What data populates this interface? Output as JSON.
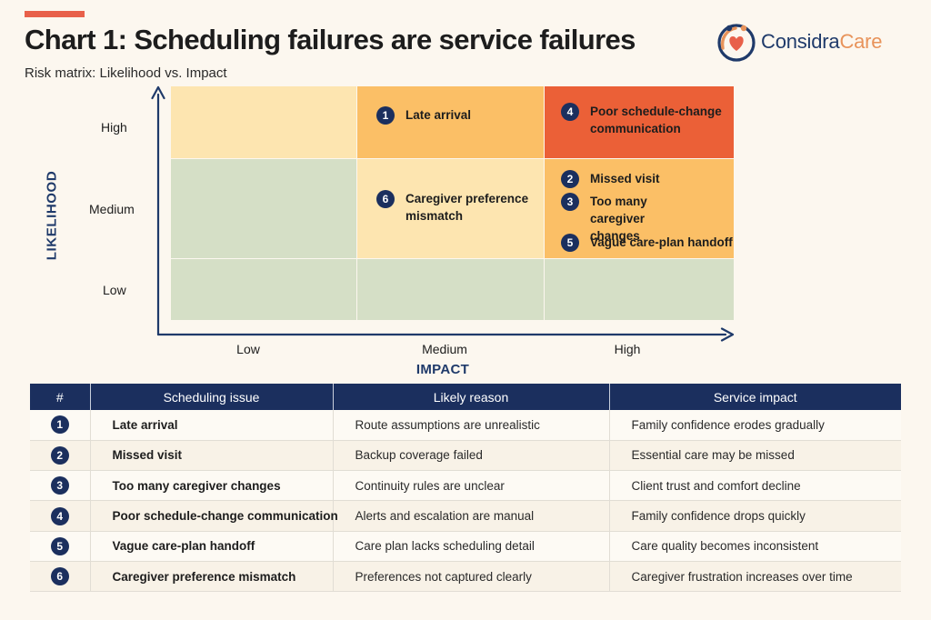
{
  "header": {
    "title": "Chart 1: Scheduling failures are service failures",
    "subtitle": "Risk matrix: Likelihood vs. Impact",
    "accent_color": "#e8604a"
  },
  "logo": {
    "text_primary": "Considra",
    "text_secondary": "Care",
    "icon": "heart-hands-logo-icon",
    "colors": {
      "primary": "#1f3a6a",
      "secondary": "#e8935a"
    }
  },
  "chart_data": {
    "type": "heatmap",
    "title": "Chart 1: Scheduling failures are service failures",
    "subtitle": "Risk matrix: Likelihood vs. Impact",
    "xlabel": "IMPACT",
    "ylabel": "LIKELIHOOD",
    "x_categories": [
      "Low",
      "Medium",
      "High"
    ],
    "y_categories": [
      "Low",
      "Medium",
      "High"
    ],
    "risk_level_colors": {
      "low": "#d5dfc6",
      "moderate": "#fde5b0",
      "elevated": "#fbbf66",
      "high": "#eb6037"
    },
    "cells": [
      {
        "x": "Low",
        "y": "High",
        "level": "moderate"
      },
      {
        "x": "Medium",
        "y": "High",
        "level": "elevated"
      },
      {
        "x": "High",
        "y": "High",
        "level": "high"
      },
      {
        "x": "Low",
        "y": "Medium",
        "level": "low"
      },
      {
        "x": "Medium",
        "y": "Medium",
        "level": "moderate"
      },
      {
        "x": "High",
        "y": "Medium",
        "level": "elevated"
      },
      {
        "x": "Low",
        "y": "Low",
        "level": "low"
      },
      {
        "x": "Medium",
        "y": "Low",
        "level": "low"
      },
      {
        "x": "High",
        "y": "Low",
        "level": "low"
      }
    ],
    "points": [
      {
        "id": 1,
        "label": "Late arrival",
        "x": "Medium",
        "y": "High"
      },
      {
        "id": 4,
        "label": "Poor schedule-change communication",
        "x": "High",
        "y": "High"
      },
      {
        "id": 6,
        "label": "Caregiver preference mismatch",
        "x": "Medium",
        "y": "Medium"
      },
      {
        "id": 2,
        "label": "Missed visit",
        "x": "High",
        "y": "Medium"
      },
      {
        "id": 3,
        "label": "Too many caregiver changes",
        "x": "High",
        "y": "Medium"
      },
      {
        "id": 5,
        "label": "Vague care-plan handoff",
        "x": "High",
        "y": "Medium"
      }
    ],
    "badge_color": "#1b2f5e",
    "axis_color": "#1f3a6a"
  },
  "table": {
    "columns": [
      "#",
      "Scheduling issue",
      "Likely reason",
      "Service impact"
    ],
    "header_color": "#1b2f5e",
    "rows": [
      {
        "num": "1",
        "issue": "Late arrival",
        "reason": "Route assumptions are unrealistic",
        "impact": "Family confidence erodes gradually"
      },
      {
        "num": "2",
        "issue": "Missed visit",
        "reason": "Backup coverage failed",
        "impact": "Essential care may be missed"
      },
      {
        "num": "3",
        "issue": "Too many caregiver changes",
        "reason": "Continuity rules are unclear",
        "impact": "Client trust and comfort decline"
      },
      {
        "num": "4",
        "issue": "Poor schedule-change communication",
        "reason": "Alerts and escalation are manual",
        "impact": "Family confidence drops quickly"
      },
      {
        "num": "5",
        "issue": "Vague care-plan handoff",
        "reason": "Care plan lacks scheduling detail",
        "impact": "Care quality becomes inconsistent"
      },
      {
        "num": "6",
        "issue": "Caregiver preference mismatch",
        "reason": "Preferences not captured clearly",
        "impact": "Caregiver frustration increases over time"
      }
    ]
  }
}
